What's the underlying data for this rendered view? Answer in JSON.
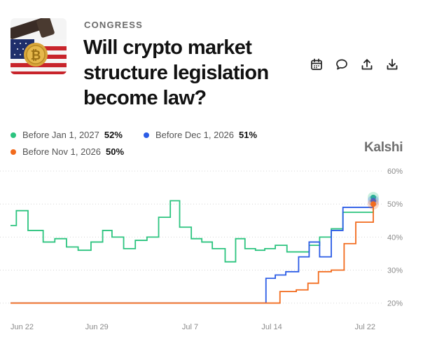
{
  "header": {
    "category": "CONGRESS",
    "title": "Will crypto market structure legislation become law?",
    "thumbnail_icon": "bitcoin-flag-gavel-image",
    "actions": [
      {
        "name": "calendar-icon"
      },
      {
        "name": "comment-icon"
      },
      {
        "name": "share-icon"
      },
      {
        "name": "download-icon"
      }
    ]
  },
  "brand": "Kalshi",
  "legend": [
    {
      "label": "Before Jan 1, 2027",
      "value": "52%",
      "color": "#2cc47f"
    },
    {
      "label": "Before Dec 1, 2026",
      "value": "51%",
      "color": "#2b5ce6"
    },
    {
      "label": "Before Nov 1, 2026",
      "value": "50%",
      "color": "#f26b1d"
    }
  ],
  "chart_data": {
    "type": "line",
    "step": true,
    "y_tick_labels": [
      "60%",
      "50%",
      "40%",
      "30%",
      "20%"
    ],
    "y_ticks": [
      60,
      50,
      40,
      30,
      20
    ],
    "ylim": [
      18,
      63
    ],
    "x_tick_labels": [
      "Jun 22",
      "Jun 29",
      "Jul 7",
      "Jul 14",
      "Jul 22"
    ],
    "x_ticks": [
      0,
      7,
      15,
      22,
      30
    ],
    "xlim": [
      -0.4,
      31.3
    ],
    "grid": "horizontal-dotted",
    "y_axis_side": "right",
    "series": [
      {
        "name": "Before Jan 1, 2027",
        "color": "#2cc47f",
        "x": [
          -0.4,
          0.1,
          1.1,
          2.4,
          3.4,
          4.4,
          5.4,
          6.5,
          7.5,
          8.3,
          9.3,
          10.3,
          11.3,
          12.3,
          13.3,
          14.1,
          15.1,
          16.0,
          16.9,
          18.0,
          18.9,
          19.7,
          20.6,
          21.4,
          22.3,
          23.3,
          24.3,
          25.2,
          26.1,
          27.1,
          28.1,
          29.0,
          30.7
        ],
        "y": [
          43.5,
          48,
          42,
          38.5,
          39.5,
          37,
          36,
          38.5,
          42,
          40,
          36.5,
          39,
          40,
          46,
          51,
          43,
          39.5,
          38.5,
          36.5,
          32.5,
          39.5,
          36.5,
          36,
          36.5,
          37.5,
          35.5,
          35.5,
          37.5,
          40,
          42.5,
          47.5,
          47.5,
          52
        ]
      },
      {
        "name": "Before Dec 1, 2026",
        "color": "#2b5ce6",
        "x": [
          -0.4,
          20.7,
          21.5,
          22.3,
          23.2,
          24.3,
          25.2,
          26.1,
          27.1,
          28.1,
          29.0,
          30.7
        ],
        "y": [
          20,
          20,
          27.5,
          28.5,
          29.5,
          34,
          38.5,
          34,
          42,
          49,
          49,
          51
        ]
      },
      {
        "name": "Before Nov 1, 2026",
        "color": "#f26b1d",
        "x": [
          -0.4,
          21.9,
          22.7,
          24.1,
          25.1,
          26.0,
          27.1,
          28.2,
          29.2,
          30.7
        ],
        "y": [
          20,
          20,
          23.5,
          24,
          26,
          29.5,
          30,
          38,
          44.5,
          50
        ]
      }
    ]
  }
}
